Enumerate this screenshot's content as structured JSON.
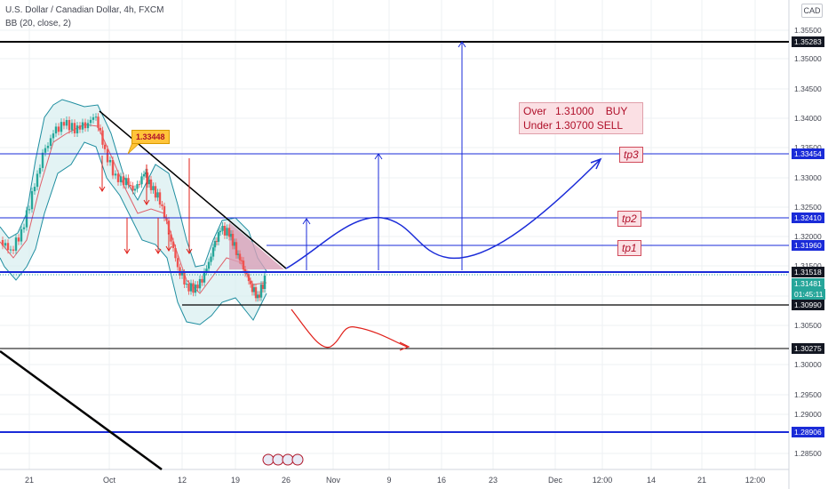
{
  "header": {
    "symbol": "U.S. Dollar / Canadian Dollar, 4h, FXCM",
    "indicator": "BB (20, close, 2)",
    "currency": "CAD"
  },
  "price_axis": {
    "ticks": [
      "1.35500",
      "1.35000",
      "1.34500",
      "1.34000",
      "1.33500",
      "1.33000",
      "1.32500",
      "1.32000",
      "1.31500",
      "1.31000",
      "1.30500",
      "1.30000",
      "1.29500",
      "1.29000",
      "1.28500"
    ],
    "labels": [
      {
        "text": "1.35283",
        "style": "black"
      },
      {
        "text": "1.33454",
        "style": "blue"
      },
      {
        "text": "1.32410",
        "style": "blue"
      },
      {
        "text": "1.31960",
        "style": "blue"
      },
      {
        "text": "1.31518",
        "style": "black"
      },
      {
        "text": "1.31481",
        "style": "green"
      },
      {
        "text": "01:45:11",
        "style": "green"
      },
      {
        "text": "1.30990",
        "style": "black"
      },
      {
        "text": "1.30275",
        "style": "black"
      },
      {
        "text": "1.28906",
        "style": "blue"
      }
    ]
  },
  "time_axis": {
    "labels": [
      "21",
      "Oct",
      "12",
      "19",
      "26",
      "Nov",
      "9",
      "16",
      "23",
      "Dec",
      "12:00",
      "14",
      "21",
      "12:00"
    ]
  },
  "annotations": {
    "note_line1": "Over   1.31000    BUY",
    "note_line2": "Under 1.30700 SELL",
    "tp1": "tp1",
    "tp2": "tp2",
    "tp3": "tp3",
    "callout": "1.33448"
  },
  "colors": {
    "blue_line": "#1a2bd8",
    "black_line": "#000000",
    "red_arrow": "#e0201a",
    "bull": "#26a69a",
    "bear": "#ef5350",
    "band_fill": "#d7eef0",
    "triangle_fill": "#d8a0b8",
    "live_price": "#26a69a"
  }
}
